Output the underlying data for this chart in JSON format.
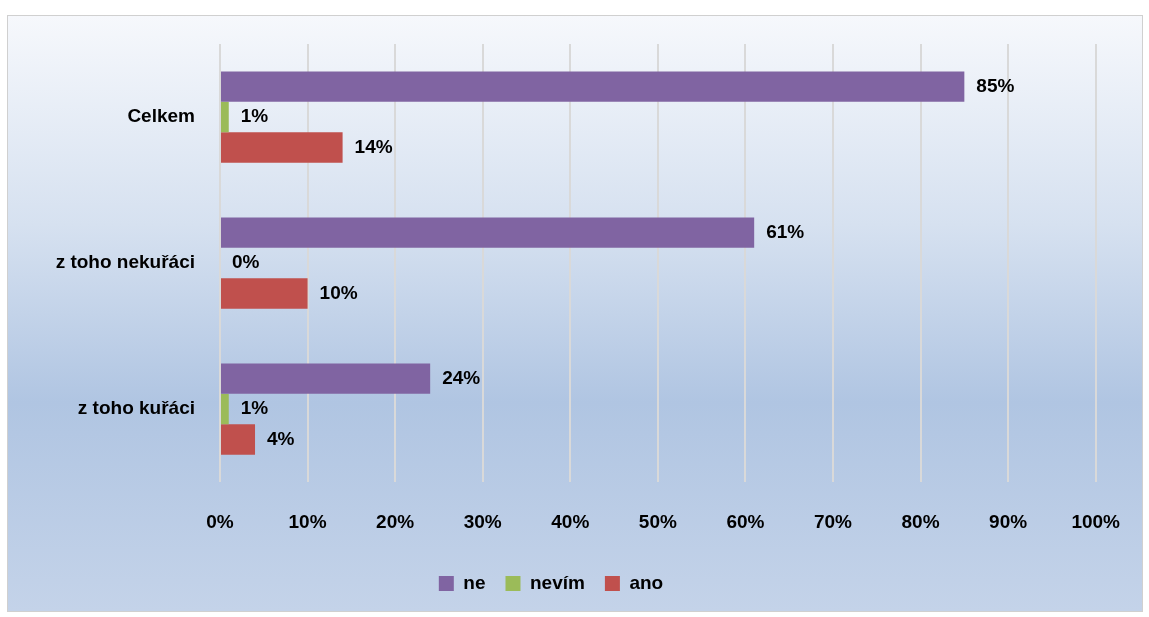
{
  "chart_data": {
    "type": "bar",
    "orientation": "horizontal",
    "categories": [
      "Celkem",
      "z toho nekuřáci",
      "z toho kuřáci"
    ],
    "series": [
      {
        "name": "ne",
        "color": "#8064a2",
        "values": [
          85,
          61,
          24
        ],
        "value_labels": [
          "85%",
          "61%",
          "24%"
        ]
      },
      {
        "name": "nevím",
        "color": "#9bbb59",
        "values": [
          1,
          0,
          1
        ],
        "value_labels": [
          "1%",
          "0%",
          "1%"
        ]
      },
      {
        "name": "ano",
        "color": "#c0504d",
        "values": [
          14,
          10,
          4
        ],
        "value_labels": [
          "14%",
          "10%",
          "4%"
        ]
      }
    ],
    "xlim": [
      0,
      100
    ],
    "xticks": [
      {
        "value": 0,
        "label": "0%"
      },
      {
        "value": 10,
        "label": "10%"
      },
      {
        "value": 20,
        "label": "20%"
      },
      {
        "value": 30,
        "label": "30%"
      },
      {
        "value": 40,
        "label": "40%"
      },
      {
        "value": 50,
        "label": "50%"
      },
      {
        "value": 60,
        "label": "60%"
      },
      {
        "value": 70,
        "label": "70%"
      },
      {
        "value": 80,
        "label": "80%"
      },
      {
        "value": 90,
        "label": "90%"
      },
      {
        "value": 100,
        "label": "100%"
      }
    ],
    "grid": "x",
    "legend": "bottom"
  }
}
